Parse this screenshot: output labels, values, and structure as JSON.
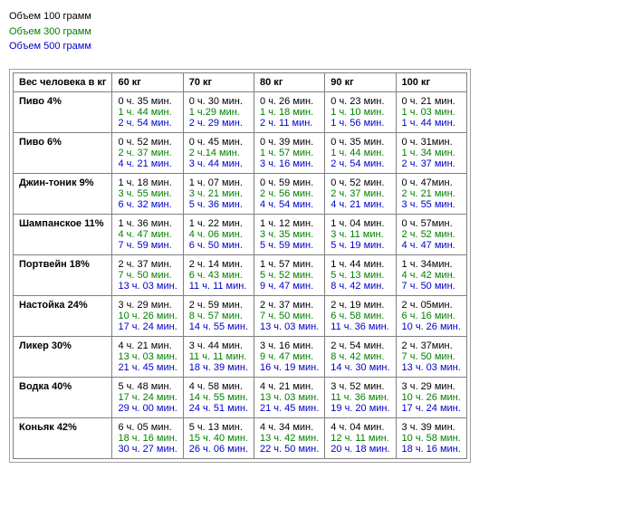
{
  "legend": {
    "v100": "Объем 100 грамм",
    "v300": "Объем 300 грамм",
    "v500": "Объем 500 грамм"
  },
  "colors": {
    "v100": "#000000",
    "v300": "#008000",
    "v500": "#0000cc"
  },
  "table": {
    "header_rowlabel": "Вес человека в кг",
    "columns": [
      "60 кг",
      "70 кг",
      "80 кг",
      "90 кг",
      "100 кг"
    ],
    "rows": [
      {
        "label": "Пиво 4%",
        "cells": [
          {
            "v100": "0 ч. 35 мин.",
            "v300": "1 ч. 44 мин.",
            "v500": "2 ч. 54 мин."
          },
          {
            "v100": "0 ч. 30 мин.",
            "v300": "1 ч.29 мин.",
            "v500": "2 ч. 29 мин."
          },
          {
            "v100": "0 ч. 26 мин.",
            "v300": "1 ч. 18 мин.",
            "v500": "2 ч. 11 мин."
          },
          {
            "v100": "0 ч. 23 мин.",
            "v300": "1 ч. 10 мин.",
            "v500": "1 ч. 56 мин."
          },
          {
            "v100": "0 ч. 21 мин.",
            "v300": "1 ч. 03 мин.",
            "v500": "1 ч. 44 мин."
          }
        ]
      },
      {
        "label": "Пиво 6%",
        "cells": [
          {
            "v100": "0 ч. 52 мин.",
            "v300": "2 ч. 37 мин.",
            "v500": "4 ч. 21 мин."
          },
          {
            "v100": "0 ч. 45 мин.",
            "v300": "2 ч.14 мин.",
            "v500": "3 ч. 44 мин."
          },
          {
            "v100": "0 ч. 39 мин.",
            "v300": "1 ч. 57 мин.",
            "v500": "3 ч. 16 мин."
          },
          {
            "v100": "0 ч. 35 мин.",
            "v300": "1 ч. 44 мин.",
            "v500": "2 ч. 54 мин."
          },
          {
            "v100": "0 ч. 31мин.",
            "v300": "1 ч. 34 мин.",
            "v500": "2 ч. 37 мин."
          }
        ]
      },
      {
        "label": "Джин-тоник 9%",
        "cells": [
          {
            "v100": "1 ч. 18 мин.",
            "v300": "3 ч. 55 мин.",
            "v500": "6 ч. 32 мин."
          },
          {
            "v100": "1 ч. 07 мин.",
            "v300": "3 ч. 21 мин.",
            "v500": "5 ч. 36 мин."
          },
          {
            "v100": "0 ч. 59 мин.",
            "v300": "2 ч. 56 мин.",
            "v500": "4 ч. 54 мин."
          },
          {
            "v100": "0 ч. 52 мин.",
            "v300": "2 ч. 37 мин.",
            "v500": "4 ч. 21 мин."
          },
          {
            "v100": "0 ч. 47мин.",
            "v300": "2 ч. 21 мин.",
            "v500": "3 ч. 55 мин."
          }
        ]
      },
      {
        "label": "Шампанское 11%",
        "cells": [
          {
            "v100": "1 ч. 36 мин.",
            "v300": "4 ч. 47 мин.",
            "v500": "7 ч. 59 мин."
          },
          {
            "v100": "1 ч. 22 мин.",
            "v300": "4 ч. 06 мин.",
            "v500": "6 ч. 50 мин."
          },
          {
            "v100": "1 ч. 12 мин.",
            "v300": "3 ч. 35 мин.",
            "v500": "5 ч. 59 мин."
          },
          {
            "v100": "1 ч. 04 мин.",
            "v300": "3 ч. 11 мин.",
            "v500": "5 ч. 19 мин."
          },
          {
            "v100": "0 ч. 57мин.",
            "v300": "2 ч. 52 мин.",
            "v500": "4 ч. 47 мин."
          }
        ]
      },
      {
        "label": "Портвейн 18%",
        "cells": [
          {
            "v100": "2 ч. 37 мин.",
            "v300": "7 ч. 50 мин.",
            "v500": "13 ч. 03 мин."
          },
          {
            "v100": "2 ч. 14 мин.",
            "v300": "6 ч. 43 мин.",
            "v500": "11 ч. 11 мин."
          },
          {
            "v100": "1 ч. 57 мин.",
            "v300": "5 ч. 52 мин.",
            "v500": "9 ч. 47 мин."
          },
          {
            "v100": "1 ч. 44 мин.",
            "v300": "5 ч. 13 мин.",
            "v500": "8 ч. 42 мин."
          },
          {
            "v100": "1 ч. 34мин.",
            "v300": "4 ч. 42 мин.",
            "v500": "7 ч. 50 мин."
          }
        ]
      },
      {
        "label": "Настойка 24%",
        "cells": [
          {
            "v100": "3 ч. 29 мин.",
            "v300": "10 ч. 26 мин.",
            "v500": "17 ч. 24 мин."
          },
          {
            "v100": "2 ч. 59 мин.",
            "v300": "8 ч. 57 мин.",
            "v500": "14 ч. 55 мин."
          },
          {
            "v100": "2 ч. 37 мин.",
            "v300": "7 ч. 50 мин.",
            "v500": "13 ч. 03 мин."
          },
          {
            "v100": "2 ч. 19 мин.",
            "v300": "6 ч. 58 мин.",
            "v500": "11 ч. 36 мин."
          },
          {
            "v100": "2 ч. 05мин.",
            "v300": "6 ч. 16 мин.",
            "v500": "10 ч. 26 мин."
          }
        ]
      },
      {
        "label": "Ликер 30%",
        "cells": [
          {
            "v100": "4 ч. 21 мин.",
            "v300": "13 ч. 03 мин.",
            "v500": "21 ч. 45 мин."
          },
          {
            "v100": "3 ч. 44 мин.",
            "v300": "11 ч. 11 мин.",
            "v500": "18 ч. 39 мин."
          },
          {
            "v100": "3 ч. 16 мин.",
            "v300": "9 ч. 47 мин.",
            "v500": "16 ч. 19 мин."
          },
          {
            "v100": "2 ч. 54 мин.",
            "v300": "8 ч. 42 мин.",
            "v500": "14 ч. 30 мин."
          },
          {
            "v100": "2 ч. 37мин.",
            "v300": "7 ч. 50 мин.",
            "v500": "13 ч. 03 мин."
          }
        ]
      },
      {
        "label": "Водка 40%",
        "cells": [
          {
            "v100": "5 ч. 48 мин.",
            "v300": "17 ч. 24 мин.",
            "v500": "29 ч. 00 мин."
          },
          {
            "v100": "4 ч. 58 мин.",
            "v300": "14 ч. 55 мин.",
            "v500": "24 ч. 51 мин."
          },
          {
            "v100": "4 ч. 21 мин.",
            "v300": "13 ч. 03 мин.",
            "v500": "21 ч. 45 мин."
          },
          {
            "v100": "3 ч. 52 мин.",
            "v300": "11 ч. 36 мин.",
            "v500": "19 ч. 20 мин."
          },
          {
            "v100": "3 ч. 29 мин.",
            "v300": "10 ч. 26 мин.",
            "v500": "17 ч. 24 мин."
          }
        ]
      },
      {
        "label": "Коньяк 42%",
        "cells": [
          {
            "v100": "6 ч. 05 мин.",
            "v300": "18 ч. 16 мин.",
            "v500": "30 ч. 27 мин."
          },
          {
            "v100": "5 ч. 13 мин.",
            "v300": "15 ч. 40 мин.",
            "v500": "26 ч. 06 мин."
          },
          {
            "v100": "4 ч. 34 мин.",
            "v300": "13 ч. 42 мин.",
            "v500": "22 ч. 50 мин."
          },
          {
            "v100": "4 ч. 04 мин.",
            "v300": "12 ч. 11 мин.",
            "v500": "20 ч. 18 мин."
          },
          {
            "v100": "3 ч. 39 мин.",
            "v300": "10 ч. 58 мин.",
            "v500": "18 ч. 16 мин."
          }
        ]
      }
    ]
  }
}
